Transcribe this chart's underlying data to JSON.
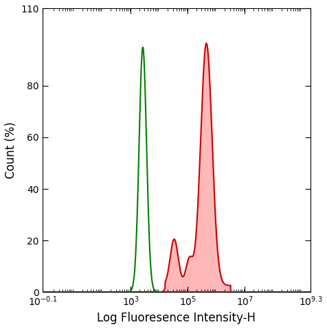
{
  "title": "",
  "xlabel": "Log Fluoresence Intensity-H",
  "ylabel": "Count (%)",
  "xlim_log": [
    -0.1,
    9.3
  ],
  "ylim": [
    0,
    110
  ],
  "yticks": [
    0,
    20,
    40,
    60,
    80,
    110
  ],
  "xtick_positions": [
    -0.1,
    3,
    5,
    7,
    9.3
  ],
  "xtick_labels": [
    "10$^{-0.1}$",
    "10$^{3}$",
    "10$^{5}$",
    "10$^{7}$",
    "10$^{9.3}$"
  ],
  "green_color": "#008000",
  "red_color": "#cc0000",
  "red_fill_color": "#ffb8b8",
  "background": "#ffffff",
  "green_peak_log": 3.42,
  "green_peak_y": 95,
  "green_sigma": 0.13,
  "red_shoulder1_log": 4.52,
  "red_shoulder1_y": 18,
  "red_shoulder1_sigma": 0.14,
  "red_valley_log": 4.85,
  "red_shoulder2_log": 5.05,
  "red_shoulder2_y": 10,
  "red_shoulder2_sigma": 0.12,
  "red_peak_log": 5.65,
  "red_peak_y": 94,
  "red_peak_sigma": 0.2,
  "red_base_y": 2.5,
  "red_base_start": 4.2,
  "red_base_end": 6.5
}
